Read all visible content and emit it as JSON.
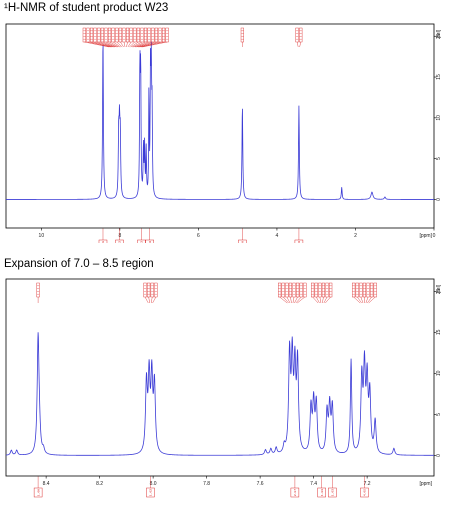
{
  "headings": {
    "full": "¹H-NMR of student product W23",
    "expansion": "Expansion of 7.0 – 8.5 region"
  },
  "colors": {
    "spectrum": "#3b3bd6",
    "annotation": "#d40000",
    "frame": "#000000"
  },
  "chart_data": [
    {
      "type": "line",
      "title": "¹H-NMR of student product W23",
      "xlabel": "[ppm]",
      "ylabel": "[rel]",
      "x_reversed": true,
      "xlim": [
        10.9,
        0.0
      ],
      "ylim": [
        -3.5,
        21.5
      ],
      "x_ticks": [
        "10",
        "8",
        "6",
        "4",
        "2",
        "0"
      ],
      "x_tick_values": [
        10,
        8,
        6,
        4,
        2,
        0
      ],
      "y_ticks": [
        "20",
        "15",
        "10",
        "5",
        "0"
      ],
      "y_tick_values": [
        20,
        15,
        10,
        5,
        0
      ],
      "series": [
        {
          "peaks": [
            {
              "ppm": 8.43,
              "height": 20.0,
              "width": 0.012
            },
            {
              "ppm": 8.03,
              "height": 7.5,
              "width": 0.012
            },
            {
              "ppm": 8.01,
              "height": 7.8,
              "width": 0.012
            },
            {
              "ppm": 7.99,
              "height": 7.2,
              "width": 0.012
            },
            {
              "ppm": 7.49,
              "height": 15.5,
              "width": 0.01
            },
            {
              "ppm": 7.47,
              "height": 15.0,
              "width": 0.01
            },
            {
              "ppm": 7.4,
              "height": 6.0,
              "width": 0.01
            },
            {
              "ppm": 7.37,
              "height": 6.2,
              "width": 0.01
            },
            {
              "ppm": 7.33,
              "height": 5.8,
              "width": 0.01
            },
            {
              "ppm": 7.26,
              "height": 13.0,
              "width": 0.008
            },
            {
              "ppm": 7.22,
              "height": 15.0,
              "width": 0.01
            },
            {
              "ppm": 7.2,
              "height": 14.0,
              "width": 0.01
            },
            {
              "ppm": 7.18,
              "height": 10.0,
              "width": 0.01
            },
            {
              "ppm": 4.88,
              "height": 11.5,
              "width": 0.012
            },
            {
              "ppm": 3.44,
              "height": 11.5,
              "width": 0.012
            },
            {
              "ppm": 2.35,
              "height": 1.5,
              "width": 0.012
            },
            {
              "ppm": 1.58,
              "height": 0.9,
              "width": 0.03
            },
            {
              "ppm": 1.25,
              "height": 0.3,
              "width": 0.02
            }
          ]
        }
      ],
      "peak_label_groups": [
        {
          "center_ppm": 7.85,
          "count": 24
        },
        {
          "center_ppm": 4.88,
          "count": 1
        },
        {
          "center_ppm": 3.44,
          "count": 2
        }
      ],
      "integrals": [
        {
          "ppm": 8.43,
          "label": "1.00"
        },
        {
          "ppm": 8.01,
          "label": "1.02"
        },
        {
          "ppm": 7.45,
          "label": "4.13"
        },
        {
          "ppm": 7.24,
          "label": "4.08"
        },
        {
          "ppm": 4.88,
          "label": "2.00"
        },
        {
          "ppm": 3.44,
          "label": "2.98"
        }
      ]
    },
    {
      "type": "line",
      "title": "Expansion of 7.0 – 8.5 region",
      "xlabel": "[ppm]",
      "ylabel": "[rel]",
      "x_reversed": true,
      "xlim": [
        8.55,
        6.95
      ],
      "ylim": [
        -2.5,
        21.5
      ],
      "x_ticks": [
        "8.4",
        "8.2",
        "8.0",
        "7.8",
        "7.6",
        "7.4",
        "7.2"
      ],
      "x_tick_values": [
        8.4,
        8.2,
        8.0,
        7.8,
        7.6,
        7.4,
        7.2
      ],
      "y_ticks": [
        "20",
        "15",
        "10",
        "5",
        "0"
      ],
      "y_tick_values": [
        20,
        15,
        10,
        5,
        0
      ],
      "series": [
        {
          "peaks": [
            {
              "ppm": 8.53,
              "height": 0.6,
              "width": 0.004
            },
            {
              "ppm": 8.51,
              "height": 0.6,
              "width": 0.004
            },
            {
              "ppm": 8.43,
              "height": 14.2,
              "width": 0.004
            },
            {
              "ppm": 8.425,
              "height": 2.0,
              "width": 0.004
            },
            {
              "ppm": 8.41,
              "height": 0.6,
              "width": 0.004
            },
            {
              "ppm": 8.025,
              "height": 8.4,
              "width": 0.004
            },
            {
              "ppm": 8.015,
              "height": 9.0,
              "width": 0.004
            },
            {
              "ppm": 8.005,
              "height": 9.0,
              "width": 0.004
            },
            {
              "ppm": 7.995,
              "height": 8.2,
              "width": 0.004
            },
            {
              "ppm": 7.58,
              "height": 0.6,
              "width": 0.004
            },
            {
              "ppm": 7.56,
              "height": 0.7,
              "width": 0.004
            },
            {
              "ppm": 7.54,
              "height": 0.8,
              "width": 0.004
            },
            {
              "ppm": 7.51,
              "height": 0.9,
              "width": 0.004
            },
            {
              "ppm": 7.49,
              "height": 11.8,
              "width": 0.004
            },
            {
              "ppm": 7.48,
              "height": 11.0,
              "width": 0.004
            },
            {
              "ppm": 7.47,
              "height": 9.8,
              "width": 0.004
            },
            {
              "ppm": 7.46,
              "height": 10.8,
              "width": 0.004
            },
            {
              "ppm": 7.41,
              "height": 5.5,
              "width": 0.004
            },
            {
              "ppm": 7.4,
              "height": 6.0,
              "width": 0.004
            },
            {
              "ppm": 7.39,
              "height": 6.0,
              "width": 0.004
            },
            {
              "ppm": 7.35,
              "height": 5.0,
              "width": 0.004
            },
            {
              "ppm": 7.34,
              "height": 5.6,
              "width": 0.004
            },
            {
              "ppm": 7.33,
              "height": 5.6,
              "width": 0.004
            },
            {
              "ppm": 7.26,
              "height": 11.5,
              "width": 0.003
            },
            {
              "ppm": 7.22,
              "height": 9.0,
              "width": 0.004
            },
            {
              "ppm": 7.21,
              "height": 10.0,
              "width": 0.004
            },
            {
              "ppm": 7.2,
              "height": 8.5,
              "width": 0.004
            },
            {
              "ppm": 7.19,
              "height": 7.0,
              "width": 0.004
            },
            {
              "ppm": 7.17,
              "height": 4.0,
              "width": 0.004
            },
            {
              "ppm": 7.1,
              "height": 0.8,
              "width": 0.004
            }
          ]
        }
      ],
      "peak_label_groups": [
        {
          "center_ppm": 8.43,
          "count": 1
        },
        {
          "center_ppm": 8.01,
          "count": 4
        },
        {
          "center_ppm": 7.48,
          "count": 8
        },
        {
          "center_ppm": 7.37,
          "count": 6
        },
        {
          "center_ppm": 7.21,
          "count": 7
        }
      ],
      "integrals": [
        {
          "ppm": 8.43,
          "label": "1.00"
        },
        {
          "ppm": 8.01,
          "label": "1.02"
        },
        {
          "ppm": 7.47,
          "label": "2.07"
        },
        {
          "ppm": 7.37,
          "label": "1.03"
        },
        {
          "ppm": 7.33,
          "label": "1.03"
        },
        {
          "ppm": 7.21,
          "label": "4.05"
        }
      ]
    }
  ]
}
